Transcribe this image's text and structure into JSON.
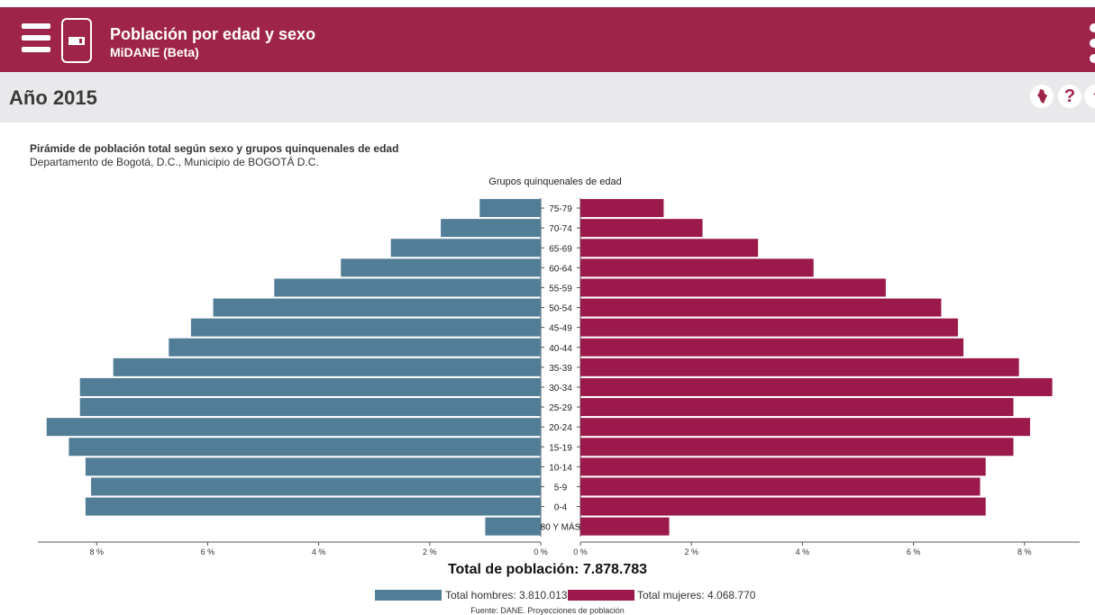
{
  "header": {
    "title": "Población por edad y sexo",
    "subtitle": "MiDANE (Beta)"
  },
  "subbar": {
    "year_label": "Año 2015",
    "help_symbol": "?"
  },
  "icons": {
    "menu": "hamburger-menu-icon",
    "app": "app-card-icon",
    "more": "kebab-menu-icon",
    "map": "colombia-map-icon",
    "help": "help-icon",
    "share": "share-icon"
  },
  "colors": {
    "brand": "#9e2549",
    "men": "#527d97",
    "women": "#9c1a4b",
    "subbar": "#e9e9ec"
  },
  "chart_data": {
    "type": "bar",
    "orientation": "horizontal-pyramid",
    "title": "Pirámide de población total según sexo y grupos quinquenales de edad",
    "subtitle": "Departamento de Bogotá, D.C., Municipio de BOGOTÁ D.C.",
    "axis_title": "Grupos quinquenales de edad",
    "categories": [
      "75-79",
      "70-74",
      "65-69",
      "60-64",
      "55-59",
      "50-54",
      "45-49",
      "40-44",
      "35-39",
      "30-34",
      "25-29",
      "20-24",
      "15-19",
      "10-14",
      "5-9",
      "0-4",
      "80 Y MÁS"
    ],
    "series": [
      {
        "name": "Total hombres",
        "values": [
          1.1,
          1.8,
          2.7,
          3.6,
          4.8,
          5.9,
          6.3,
          6.7,
          7.7,
          8.3,
          8.3,
          8.9,
          8.5,
          8.2,
          8.1,
          8.2,
          1.0
        ]
      },
      {
        "name": "Total mujeres",
        "values": [
          1.5,
          2.2,
          3.2,
          4.2,
          5.5,
          6.5,
          6.8,
          6.9,
          7.9,
          8.5,
          7.8,
          8.1,
          7.8,
          7.3,
          7.2,
          7.3,
          1.6
        ]
      }
    ],
    "xlim": [
      0,
      9
    ],
    "left_ticks": [
      "8 %",
      "6 %",
      "4 %",
      "2 %",
      "0 %"
    ],
    "right_ticks": [
      "0 %",
      "2 %",
      "4 %",
      "6 %",
      "8 %"
    ],
    "total_label": "Total de población: 7.878.783",
    "legend": [
      "Total hombres: 3.810.013",
      "Total mujeres: 4.068.770"
    ],
    "source": "Fuente: DANE. Proyecciones de población"
  }
}
